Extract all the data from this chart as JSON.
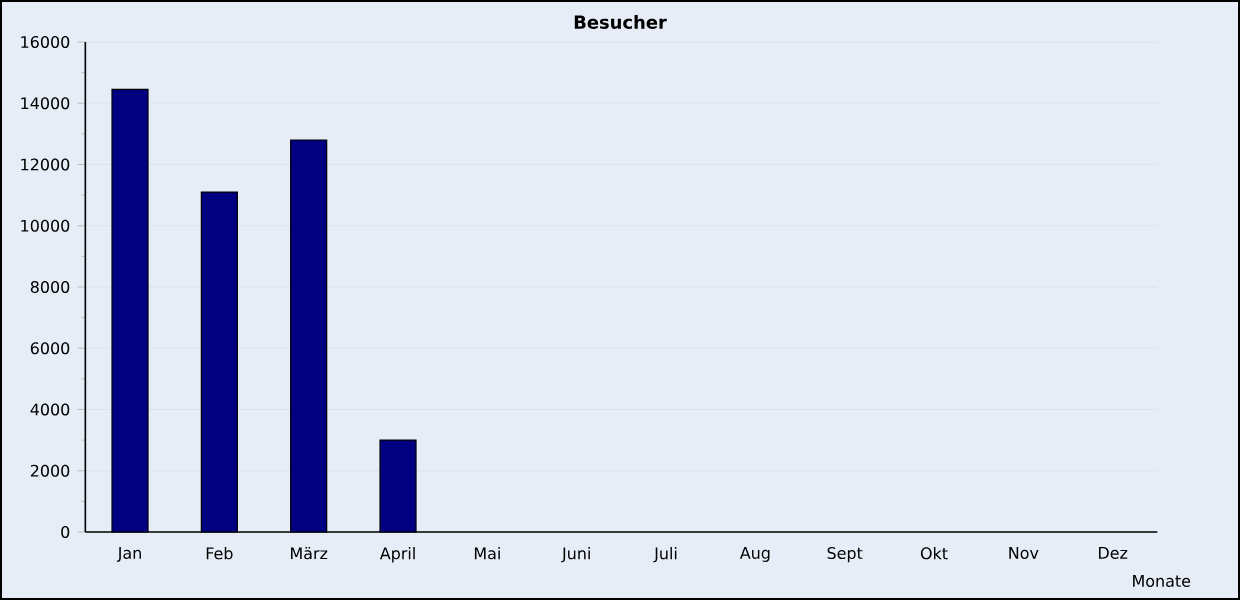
{
  "chart_data": {
    "type": "bar",
    "title": "Besucher",
    "xlabel": "Monate",
    "categories": [
      "Jan",
      "Feb",
      "März",
      "April",
      "Mai",
      "Juni",
      "Juli",
      "Aug",
      "Sept",
      "Okt",
      "Nov",
      "Dez"
    ],
    "values": [
      14450,
      11100,
      12800,
      3000,
      null,
      null,
      null,
      null,
      null,
      null,
      null,
      null
    ],
    "color": "#000080",
    "ylim": [
      0,
      16000
    ],
    "yticks": [
      0,
      2000,
      4000,
      6000,
      8000,
      10000,
      12000,
      14000,
      16000
    ],
    "grid": "y"
  }
}
